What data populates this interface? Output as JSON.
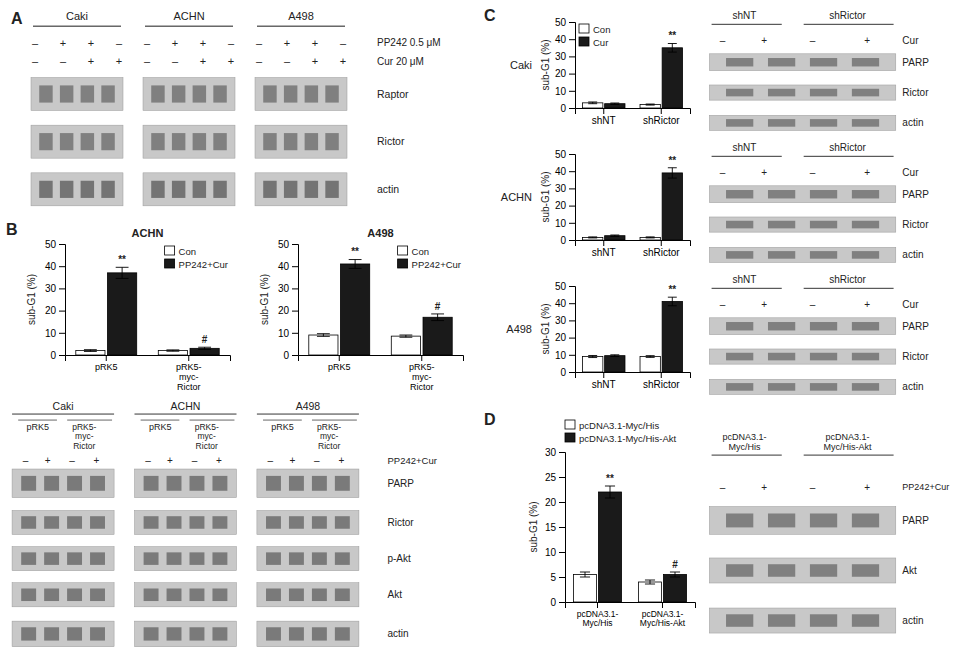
{
  "chart_data": [
    {
      "type": "blot",
      "title": "A",
      "categories": [
        "Caki",
        "ACHN",
        "A498"
      ],
      "annotations": [
        "–",
        "+",
        "+",
        "–",
        "–",
        "–",
        "+",
        "+",
        "PP242 0.5 μM",
        "Cur 20 μM",
        "Raptor",
        "Rictor",
        "actin"
      ]
    },
    {
      "type": "bar",
      "title": "ACHN",
      "categories": [
        "pRK5",
        "pRK5-\nmyc-\nRictor"
      ],
      "ylabel": "sub-G1 (%)",
      "ylim": [
        0,
        50
      ],
      "yticks": [
        0,
        10,
        20,
        30,
        40,
        50
      ],
      "legend": "upper right",
      "series": [
        {
          "name": "Con",
          "color": "#ffffff",
          "values": [
            2.0,
            2.0
          ],
          "errors": [
            0.4,
            0.3
          ]
        },
        {
          "name": "PP242+Cur",
          "color": "#1a1a1a",
          "values": [
            37.0,
            3.0
          ],
          "errors": [
            2.5,
            0.5
          ],
          "annotations": [
            "**",
            "#"
          ]
        }
      ]
    },
    {
      "type": "bar",
      "title": "A498",
      "categories": [
        "pRK5",
        "pRK5-\nmyc-\nRictor"
      ],
      "ylabel": "sub-G1 (%)",
      "ylim": [
        0,
        50
      ],
      "yticks": [
        0,
        10,
        20,
        30,
        40,
        50
      ],
      "legend": "upper right",
      "series": [
        {
          "name": "Con",
          "color": "#ffffff",
          "values": [
            9.0,
            8.5
          ],
          "errors": [
            0.6,
            0.5
          ]
        },
        {
          "name": "PP242+Cur",
          "color": "#1a1a1a",
          "values": [
            41.0,
            17.0
          ],
          "errors": [
            2.0,
            1.5
          ],
          "annotations": [
            "**",
            "#"
          ]
        }
      ]
    },
    {
      "type": "blot",
      "title": "B",
      "categories": [
        "Caki",
        "ACHN",
        "A498"
      ],
      "annotations": [
        "pRK5",
        "pRK5-\nmyc-\nRictor",
        "–",
        "+",
        "–",
        "+",
        "PP242+Cur",
        "PARP",
        "Rictor",
        "p-Akt",
        "Akt",
        "actin"
      ]
    },
    {
      "type": "bar",
      "title": "Caki",
      "categories": [
        "shNT",
        "shRictor"
      ],
      "ylabel": "sub-G1 (%)",
      "ylim": [
        0,
        50
      ],
      "yticks": [
        0,
        10,
        20,
        30,
        40,
        50
      ],
      "legend": "upper left",
      "series": [
        {
          "name": "Con",
          "color": "#ffffff",
          "values": [
            3.0,
            2.0
          ],
          "errors": [
            0.5,
            0.3
          ]
        },
        {
          "name": "Cur",
          "color": "#1a1a1a",
          "values": [
            2.5,
            35.0
          ],
          "errors": [
            0.4,
            2.5
          ],
          "annotations": [
            null,
            "**"
          ]
        }
      ]
    },
    {
      "type": "blot",
      "title": "C",
      "categories": [
        "shNT",
        "shRictor"
      ],
      "annotations": [
        "–",
        "+",
        "–",
        "+",
        "Cur",
        "PARP",
        "Rictor",
        "actin"
      ]
    },
    {
      "type": "bar",
      "title": "ACHN",
      "categories": [
        "shNT",
        "shRictor"
      ],
      "ylabel": "sub-G1 (%)",
      "ylim": [
        0,
        50
      ],
      "yticks": [
        0,
        10,
        20,
        30,
        40,
        50
      ],
      "series": [
        {
          "color": "#ffffff",
          "values": [
            1.5,
            1.5
          ],
          "errors": [
            0.3,
            0.3
          ]
        },
        {
          "color": "#1a1a1a",
          "values": [
            2.5,
            39.0
          ],
          "errors": [
            0.4,
            3.0
          ],
          "annotations": [
            null,
            "**"
          ]
        }
      ]
    },
    {
      "type": "blot",
      "categories": [
        "shNT",
        "shRictor"
      ],
      "annotations": [
        "–",
        "+",
        "–",
        "+",
        "Cur",
        "PARP",
        "Rictor",
        "actin"
      ]
    },
    {
      "type": "bar",
      "title": "A498",
      "categories": [
        "shNT",
        "shRictor"
      ],
      "ylabel": "sub-G1 (%)",
      "ylim": [
        0,
        50
      ],
      "yticks": [
        0,
        10,
        20,
        30,
        40,
        50
      ],
      "series": [
        {
          "color": "#ffffff",
          "values": [
            9.0,
            9.0
          ],
          "errors": [
            0.6,
            0.5
          ]
        },
        {
          "color": "#1a1a1a",
          "values": [
            9.5,
            41.0
          ],
          "errors": [
            0.5,
            2.5
          ],
          "annotations": [
            null,
            "**"
          ]
        }
      ]
    },
    {
      "type": "blot",
      "categories": [
        "shNT",
        "shRictor"
      ],
      "annotations": [
        "–",
        "+",
        "–",
        "+",
        "Cur",
        "PARP",
        "Rictor",
        "actin"
      ]
    },
    {
      "type": "bar",
      "categories": [
        "pcDNA3.1-\nMyc/His",
        "pcDNA3.1-\nMyc/His-Akt"
      ],
      "ylabel": "sub-G1 (%)",
      "ylim": [
        0,
        30
      ],
      "yticks": [
        0,
        5,
        10,
        15,
        20,
        25,
        30
      ],
      "legend": "upper left",
      "series": [
        {
          "name": "pcDNA3.1-Myc/His",
          "color": "#ffffff",
          "values": [
            5.5,
            4.0
          ],
          "errors": [
            0.5,
            0.4
          ]
        },
        {
          "name": "pcDNA3.1-Myc/His-Akt",
          "color": "#1a1a1a",
          "values": [
            22.0,
            5.5
          ],
          "errors": [
            1.2,
            0.5
          ],
          "annotations": [
            "**",
            "#"
          ]
        }
      ]
    },
    {
      "type": "blot",
      "title": "D",
      "categories": [
        "pcDNA3.1-\nMyc/His",
        "pcDNA3.1-\nMyc/His-Akt"
      ],
      "annotations": [
        "–",
        "+",
        "–",
        "+",
        "PP242+Cur",
        "PARP",
        "Akt",
        "actin"
      ]
    }
  ]
}
